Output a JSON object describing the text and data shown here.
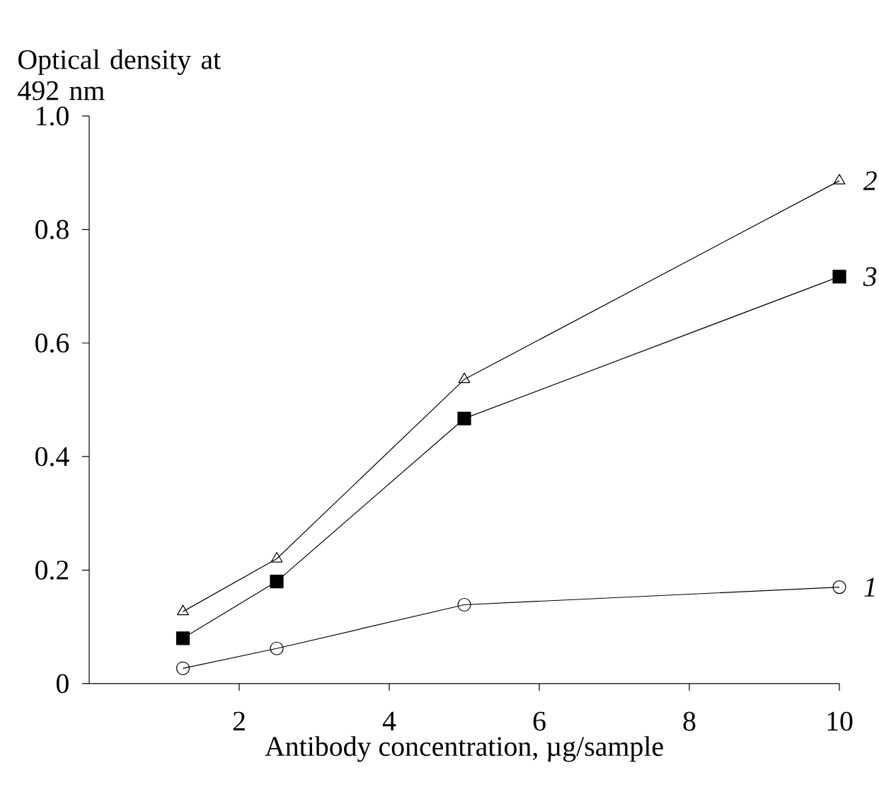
{
  "chart_data": {
    "type": "line",
    "ylabel": "Optical density at 492 nm",
    "xlabel": "Antibody concentration, µg/sample",
    "xlim": [
      0,
      10
    ],
    "xticks": [
      2,
      4,
      6,
      8,
      10
    ],
    "ylim": [
      0,
      1.0
    ],
    "yticks": [
      0,
      0.2,
      0.4,
      0.6,
      0.8,
      {
        "value": 1.0,
        "label": "1.0"
      }
    ],
    "grid": false,
    "line_style": "solid",
    "series": [
      {
        "name": "1",
        "color": "#000000",
        "marker": "circle",
        "x": [
          1.25,
          2.5,
          5,
          10
        ],
        "values": [
          0.027,
          0.062,
          0.139,
          0.17
        ]
      },
      {
        "name": "2",
        "color": "#000000",
        "marker": "triangle",
        "x": [
          1.25,
          2.5,
          5,
          10
        ],
        "values": [
          0.127,
          0.22,
          0.536,
          0.886
        ]
      },
      {
        "name": "3",
        "color": "#000000",
        "marker": "square",
        "x": [
          1.25,
          2.5,
          5,
          10
        ],
        "values": [
          0.08,
          0.18,
          0.467,
          0.717
        ]
      }
    ]
  }
}
